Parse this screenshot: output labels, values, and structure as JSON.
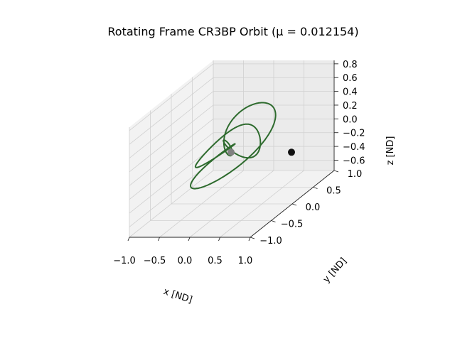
{
  "chart_data": {
    "type": "line-3d",
    "title": "Rotating Frame CR3BP Orbit (μ = 0.012154)",
    "xlabel": "x [ND]",
    "ylabel": "y [ND]",
    "zlabel": "z [ND]",
    "xlim": [
      -1.0,
      1.0
    ],
    "ylim": [
      -1.0,
      1.0
    ],
    "zlim": [
      -0.75,
      0.85
    ],
    "xticks": [
      "−1.0",
      "−0.5",
      "0.0",
      "0.5",
      "1.0"
    ],
    "yticks": [
      "−1.0",
      "−0.5",
      "0.0",
      "0.5",
      "1.0"
    ],
    "zticks": [
      "−0.6",
      "−0.4",
      "−0.2",
      "0.0",
      "0.2",
      "0.4",
      "0.6",
      "0.8"
    ],
    "grid": true,
    "series": [
      {
        "color": "#2e6b2e"
      }
    ],
    "bodies": [
      {
        "x": -0.012154,
        "y": 0.0,
        "z": 0.0,
        "color": "#808080"
      },
      {
        "x": 0.987846,
        "y": 0.0,
        "z": 0.0,
        "color": "#111111"
      }
    ]
  }
}
